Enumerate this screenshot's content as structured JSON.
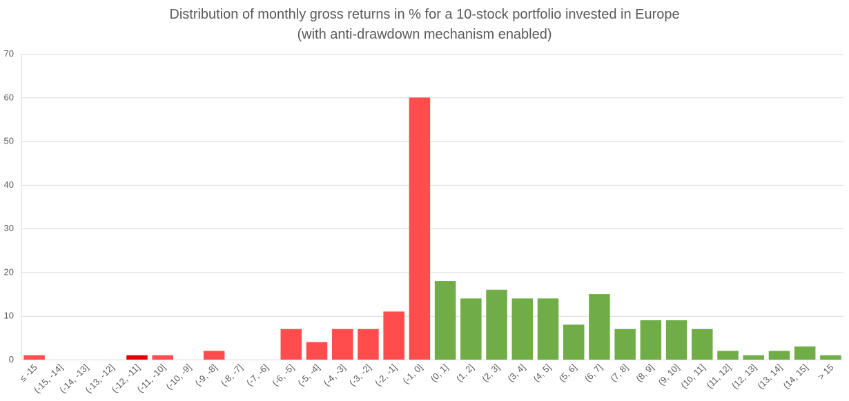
{
  "chart_data": {
    "type": "bar",
    "title": "Distribution of monthly gross returns in % for a 10-stock portfolio invested in Europe",
    "subtitle": "(with anti-drawdown mechanism enabled)",
    "xlabel": "",
    "ylabel": "",
    "ylim": [
      0,
      70
    ],
    "yticks": [
      "0",
      "10",
      "20",
      "30",
      "40",
      "50",
      "60",
      "70"
    ],
    "grid": true,
    "legend": "none",
    "categories": [
      "≤ -15",
      "(-15, -14]",
      "(-14, -13]",
      "(-13, -12]",
      "(-12, -11]",
      "(-11, -10]",
      "(-10, -9]",
      "(-9, -8]",
      "(-8, -7]",
      "(-7, -6]",
      "(-6, -5]",
      "(-5, -4]",
      "(-4, -3]",
      "(-3, -2]",
      "(-2, -1]",
      "(-1, 0]",
      "(0, 1]",
      "(1, 2]",
      "(2, 3]",
      "(3, 4]",
      "(4, 5]",
      "(5, 6]",
      "(6, 7]",
      "(7, 8]",
      "(8, 9]",
      "(9, 10]",
      "(10, 11]",
      "(11, 12]",
      "(12, 13]",
      "(13, 14]",
      "(14, 15]",
      "> 15"
    ],
    "values": [
      1,
      0,
      0,
      0,
      1,
      1,
      0,
      2,
      0,
      0,
      7,
      4,
      7,
      7,
      11,
      60,
      18,
      14,
      16,
      14,
      14,
      8,
      15,
      7,
      9,
      9,
      7,
      2,
      1,
      2,
      3,
      1
    ],
    "colors": {
      "negative": "#ff4d4d",
      "highlight": "#e00000",
      "positive": "#70ad47",
      "grid": "#d9d9d9",
      "text": "#595959"
    },
    "highlight_index": 4
  }
}
